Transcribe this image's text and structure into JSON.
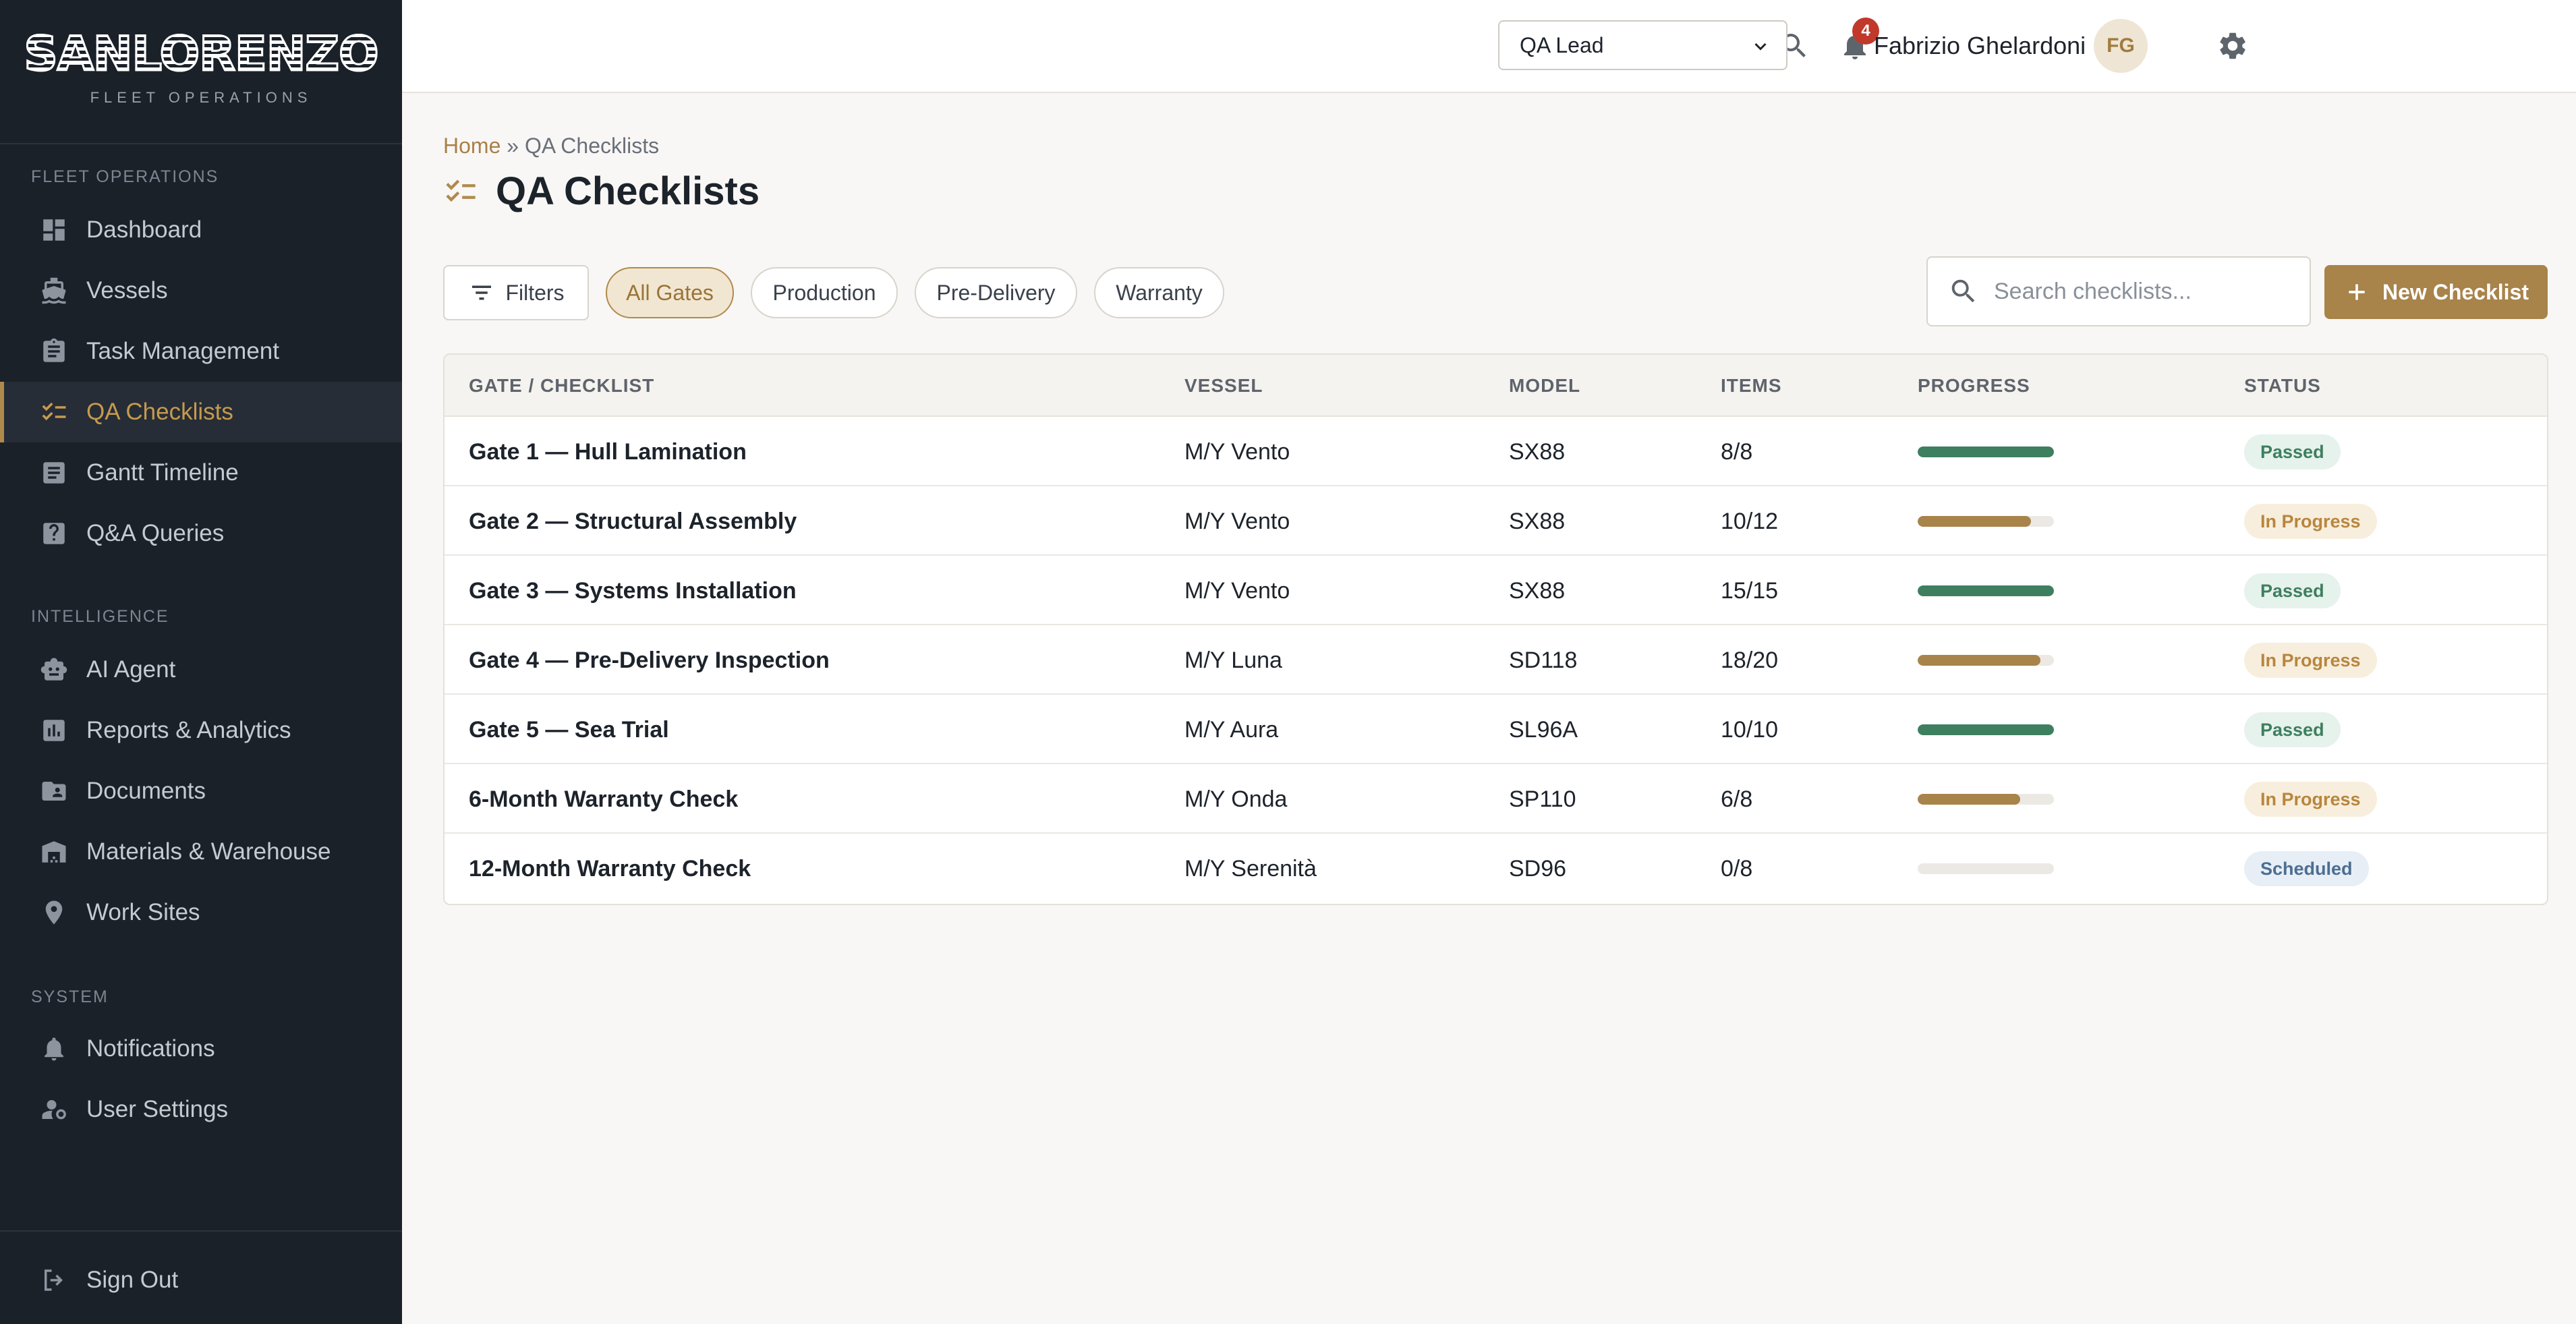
{
  "brand": {
    "name": "SANLORENZO",
    "subtitle": "FLEET OPERATIONS"
  },
  "sidebar": {
    "sections": [
      {
        "title": "FLEET OPERATIONS"
      },
      {
        "title": "INTELLIGENCE"
      },
      {
        "title": "SYSTEM"
      }
    ],
    "items": [
      {
        "label": "Dashboard",
        "icon": "dashboard-icon"
      },
      {
        "label": "Vessels",
        "icon": "ship-icon"
      },
      {
        "label": "Task Management",
        "icon": "clipboard-icon"
      },
      {
        "label": "QA Checklists",
        "icon": "checklist-icon",
        "active": true
      },
      {
        "label": "Gantt Timeline",
        "icon": "timeline-icon"
      },
      {
        "label": "Q&A Queries",
        "icon": "question-icon"
      },
      {
        "label": "AI Agent",
        "icon": "robot-icon"
      },
      {
        "label": "Reports & Analytics",
        "icon": "chart-icon"
      },
      {
        "label": "Documents",
        "icon": "folder-icon"
      },
      {
        "label": "Materials & Warehouse",
        "icon": "warehouse-icon"
      },
      {
        "label": "Work Sites",
        "icon": "location-pin-icon"
      },
      {
        "label": "Notifications",
        "icon": "bell-icon"
      },
      {
        "label": "User Settings",
        "icon": "user-gear-icon"
      }
    ],
    "signout": "Sign Out"
  },
  "topbar": {
    "notification_count": "4",
    "role": "QA Lead",
    "user_name": "Fabrizio Ghelardoni",
    "user_initials": "FG"
  },
  "breadcrumb": {
    "home": "Home",
    "separator": "»",
    "current": "QA Checklists"
  },
  "page": {
    "title": "QA Checklists"
  },
  "toolbar": {
    "filters_label": "Filters",
    "chips": [
      "All Gates",
      "Production",
      "Pre-Delivery",
      "Warranty"
    ],
    "active_chip": "All Gates",
    "search_placeholder": "Search checklists...",
    "new_label": "New Checklist"
  },
  "table": {
    "headers": [
      "GATE / CHECKLIST",
      "VESSEL",
      "MODEL",
      "ITEMS",
      "PROGRESS",
      "STATUS"
    ],
    "rows": [
      {
        "name": "Gate 1 — Hull Lamination",
        "vessel": "M/Y Vento",
        "model": "SX88",
        "items": "8/8",
        "progress": 1.0,
        "status": "Passed"
      },
      {
        "name": "Gate 2 — Structural Assembly",
        "vessel": "M/Y Vento",
        "model": "SX88",
        "items": "10/12",
        "progress": 0.833,
        "status": "In Progress"
      },
      {
        "name": "Gate 3 — Systems Installation",
        "vessel": "M/Y Vento",
        "model": "SX88",
        "items": "15/15",
        "progress": 1.0,
        "status": "Passed"
      },
      {
        "name": "Gate 4 — Pre-Delivery Inspection",
        "vessel": "M/Y Luna",
        "model": "SD118",
        "items": "18/20",
        "progress": 0.9,
        "status": "In Progress"
      },
      {
        "name": "Gate 5 — Sea Trial",
        "vessel": "M/Y Aura",
        "model": "SL96A",
        "items": "10/10",
        "progress": 1.0,
        "status": "Passed"
      },
      {
        "name": "6-Month Warranty Check",
        "vessel": "M/Y Onda",
        "model": "SP110",
        "items": "6/8",
        "progress": 0.75,
        "status": "In Progress"
      },
      {
        "name": "12-Month Warranty Check",
        "vessel": "M/Y Serenità",
        "model": "SD96",
        "items": "0/8",
        "progress": 0.0,
        "status": "Scheduled"
      }
    ]
  },
  "colors": {
    "sidebar_bg": "#1b2129",
    "accent": "#a8834a",
    "passed": "#3e7f5f",
    "in_progress": "#a8834a",
    "scheduled": "#4c6e92"
  }
}
